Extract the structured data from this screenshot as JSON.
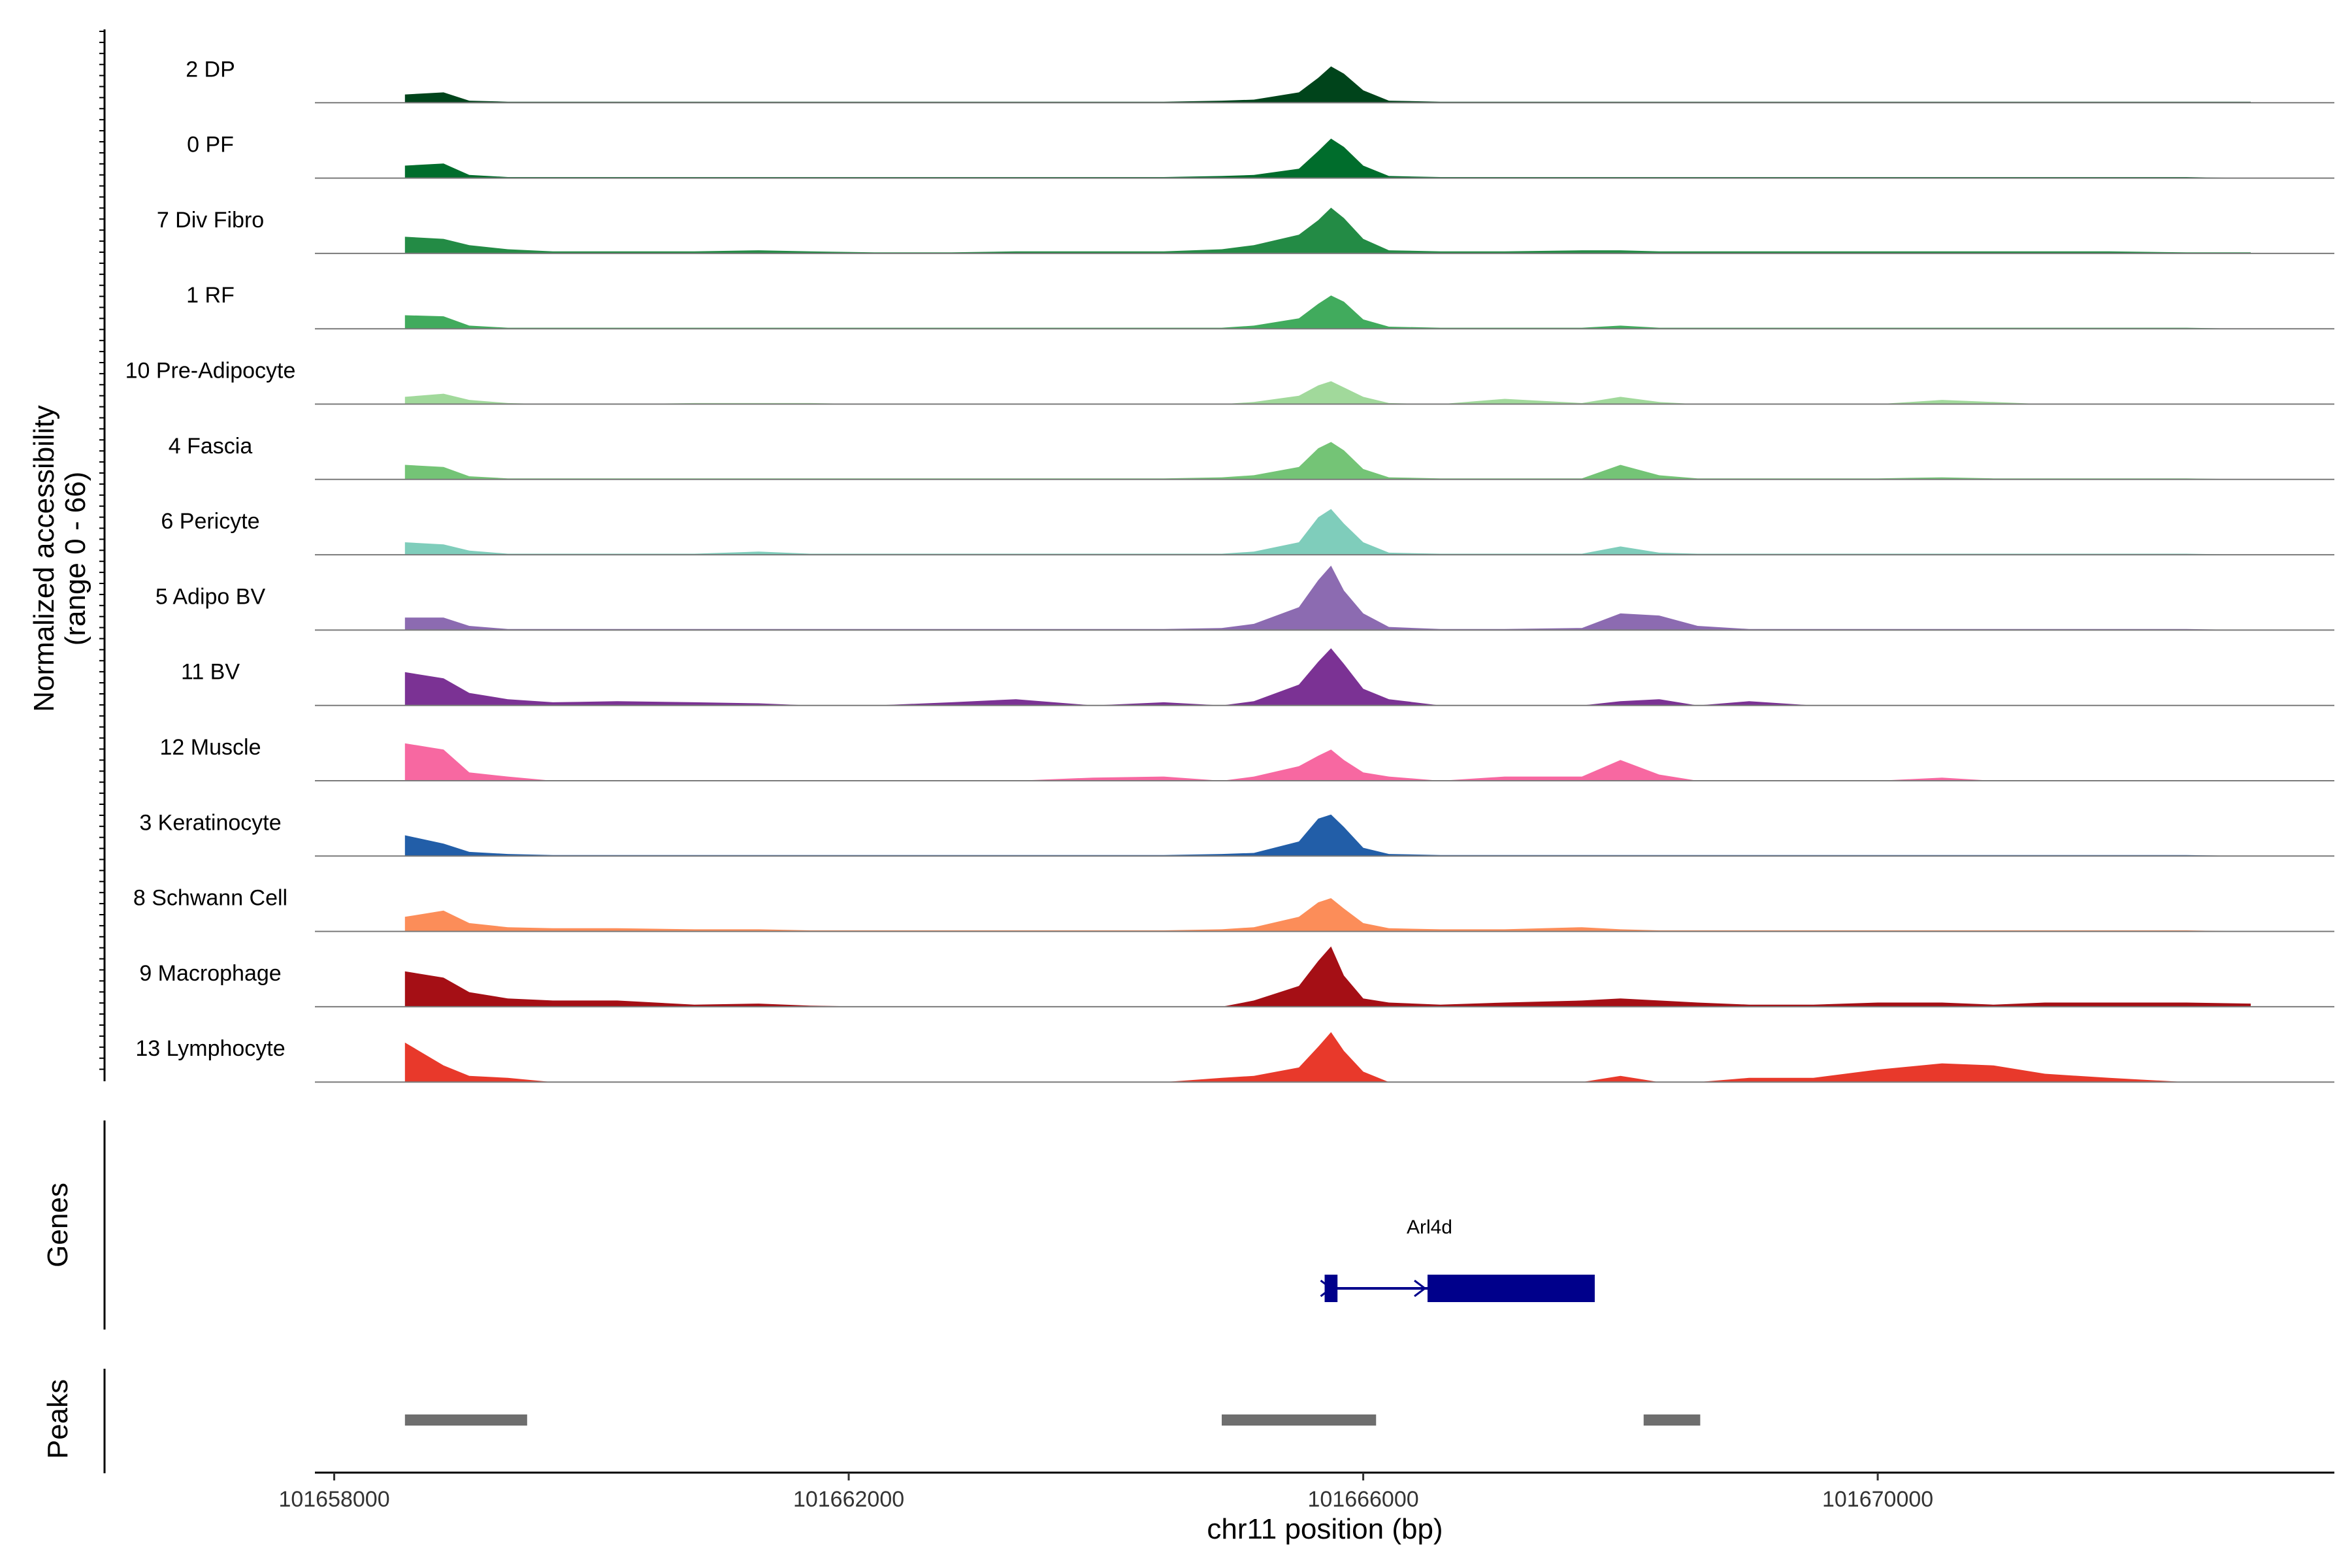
{
  "chart_data": {
    "type": "area",
    "coverage_ylabel_line1": "Normalized accessibility",
    "coverage_ylabel_line2": "(range 0 - 66)",
    "yrange": [
      0,
      66
    ],
    "xlabel": "chr11 position (bp)",
    "xlim": [
      101657850,
      101673550
    ],
    "xticks": [
      101658000,
      101662000,
      101666000,
      101670000
    ],
    "xtick_labels": [
      "101658000",
      "101662000",
      "101666000",
      "101670000"
    ],
    "panel_labels": {
      "genes": "Genes",
      "peaks": "Peaks"
    },
    "track_positions": [
      101658550,
      101658850,
      101659050,
      101659350,
      101659700,
      101660200,
      101660800,
      101661300,
      101661700,
      101662200,
      101662800,
      101663300,
      101663900,
      101664450,
      101664900,
      101665150,
      101665500,
      101665650,
      101665750,
      101665850,
      101666000,
      101666200,
      101666600,
      101667100,
      101667700,
      101668000,
      101668300,
      101668600,
      101669000,
      101669500,
      101670000,
      101670500,
      101670900,
      101671300,
      101671800,
      101672400,
      101672900
    ],
    "series": [
      {
        "name": "2 DP",
        "color": "#00441b",
        "values": [
          8,
          10,
          2,
          1,
          1,
          1,
          1,
          1,
          1,
          1,
          1,
          1,
          1,
          1,
          2,
          3,
          10,
          24,
          35,
          28,
          12,
          2,
          1,
          1,
          1,
          1,
          1,
          1,
          1,
          1,
          1,
          1,
          1,
          1,
          1,
          1,
          1
        ]
      },
      {
        "name": "0 PF",
        "color": "#006d2c",
        "values": [
          12,
          14,
          3,
          1,
          1,
          1,
          1,
          1,
          1,
          1,
          1,
          1,
          1,
          1,
          2,
          3,
          9,
          26,
          38,
          30,
          12,
          2,
          1,
          1,
          1,
          1,
          1,
          1,
          1,
          1,
          1,
          1,
          1,
          1,
          1,
          1,
          0
        ]
      },
      {
        "name": "7 Div Fibro",
        "color": "#238b45",
        "values": [
          16,
          14,
          8,
          4,
          2,
          2,
          2,
          3,
          2,
          1,
          1,
          2,
          2,
          2,
          4,
          8,
          18,
          32,
          44,
          34,
          14,
          3,
          2,
          2,
          3,
          3,
          2,
          2,
          2,
          2,
          2,
          2,
          2,
          2,
          2,
          1,
          1
        ]
      },
      {
        "name": "1 RF",
        "color": "#41ab5d",
        "values": [
          13,
          12,
          3,
          1,
          1,
          1,
          1,
          1,
          1,
          1,
          1,
          1,
          1,
          1,
          1,
          3,
          10,
          24,
          32,
          26,
          9,
          2,
          1,
          1,
          1,
          3,
          1,
          1,
          1,
          1,
          1,
          1,
          1,
          1,
          1,
          1,
          0
        ]
      },
      {
        "name": "10 Pre-Adipocyte",
        "color": "#a1d99b",
        "values": [
          7,
          10,
          4,
          1,
          0,
          0,
          1,
          1,
          1,
          0,
          0,
          0,
          0,
          0,
          0,
          2,
          8,
          18,
          22,
          16,
          7,
          1,
          0,
          5,
          1,
          7,
          2,
          0,
          0,
          0,
          0,
          4,
          2,
          0,
          0,
          0,
          0
        ]
      },
      {
        "name": "4 Fascia",
        "color": "#74c476",
        "values": [
          14,
          12,
          3,
          1,
          1,
          1,
          1,
          1,
          1,
          1,
          1,
          1,
          1,
          1,
          2,
          4,
          12,
          30,
          36,
          28,
          10,
          2,
          1,
          1,
          1,
          14,
          4,
          1,
          1,
          1,
          1,
          2,
          1,
          1,
          1,
          1,
          0
        ]
      },
      {
        "name": "6 Pericyte",
        "color": "#7fcdbb",
        "values": [
          12,
          10,
          4,
          1,
          1,
          1,
          1,
          3,
          1,
          1,
          1,
          1,
          1,
          1,
          1,
          3,
          12,
          36,
          44,
          30,
          12,
          2,
          1,
          1,
          1,
          8,
          2,
          1,
          1,
          1,
          1,
          1,
          1,
          1,
          1,
          1,
          0
        ]
      },
      {
        "name": "5 Adipo BV",
        "color": "#8c6bb1",
        "values": [
          12,
          12,
          4,
          1,
          1,
          1,
          1,
          1,
          1,
          1,
          1,
          1,
          1,
          1,
          2,
          6,
          22,
          48,
          62,
          38,
          16,
          3,
          1,
          1,
          2,
          16,
          14,
          4,
          1,
          1,
          1,
          1,
          1,
          1,
          1,
          1,
          0
        ]
      },
      {
        "name": "11 BV",
        "color": "#7b3294",
        "values": [
          32,
          26,
          12,
          6,
          3,
          4,
          3,
          2,
          0,
          0,
          3,
          6,
          0,
          3,
          0,
          4,
          20,
          42,
          55,
          40,
          16,
          6,
          0,
          0,
          0,
          4,
          6,
          0,
          4,
          0,
          0,
          0,
          0,
          0,
          0,
          0,
          0
        ]
      },
      {
        "name": "12 Muscle",
        "color": "#f768a1",
        "values": [
          36,
          30,
          8,
          4,
          0,
          0,
          0,
          0,
          0,
          0,
          0,
          0,
          3,
          4,
          0,
          4,
          14,
          24,
          30,
          20,
          8,
          4,
          0,
          4,
          4,
          20,
          6,
          0,
          0,
          0,
          0,
          3,
          0,
          0,
          0,
          0,
          0
        ]
      },
      {
        "name": "3 Keratinocyte",
        "color": "#225ea8",
        "values": [
          20,
          12,
          4,
          2,
          1,
          1,
          1,
          1,
          1,
          1,
          1,
          1,
          1,
          1,
          2,
          3,
          14,
          36,
          40,
          28,
          8,
          2,
          1,
          1,
          1,
          1,
          1,
          1,
          1,
          1,
          1,
          1,
          1,
          1,
          1,
          1,
          0
        ]
      },
      {
        "name": "8 Schwann Cell",
        "color": "#fc8d59",
        "values": [
          14,
          20,
          8,
          4,
          3,
          3,
          2,
          2,
          1,
          1,
          1,
          1,
          1,
          1,
          2,
          4,
          14,
          28,
          32,
          22,
          8,
          3,
          2,
          2,
          4,
          2,
          1,
          1,
          1,
          1,
          1,
          1,
          1,
          1,
          1,
          1,
          0
        ]
      },
      {
        "name": "9 Macrophage",
        "color": "#a50f15",
        "values": [
          34,
          28,
          14,
          8,
          6,
          6,
          2,
          3,
          1,
          0,
          0,
          0,
          0,
          0,
          0,
          6,
          20,
          44,
          58,
          30,
          8,
          4,
          2,
          4,
          6,
          8,
          6,
          4,
          2,
          2,
          4,
          4,
          2,
          4,
          4,
          4,
          3
        ]
      },
      {
        "name": "13 Lymphocyte",
        "color": "#e8392b",
        "values": [
          38,
          16,
          6,
          4,
          0,
          0,
          0,
          0,
          0,
          0,
          0,
          0,
          0,
          0,
          4,
          6,
          14,
          34,
          48,
          30,
          10,
          0,
          0,
          0,
          0,
          6,
          0,
          0,
          4,
          4,
          12,
          18,
          16,
          8,
          4,
          0,
          0
        ]
      }
    ],
    "genes": [
      {
        "name": "Arl4d",
        "color": "#00008b",
        "exons": [
          [
            101665700,
            101665800
          ],
          [
            101666500,
            101667800
          ]
        ],
        "line": [
          101665700,
          101666500
        ],
        "strand": "+"
      }
    ],
    "peaks": {
      "color": "#6e6e6e",
      "ranges": [
        [
          101658550,
          101659500
        ],
        [
          101664900,
          101666100
        ],
        [
          101668180,
          101668620
        ]
      ]
    }
  }
}
